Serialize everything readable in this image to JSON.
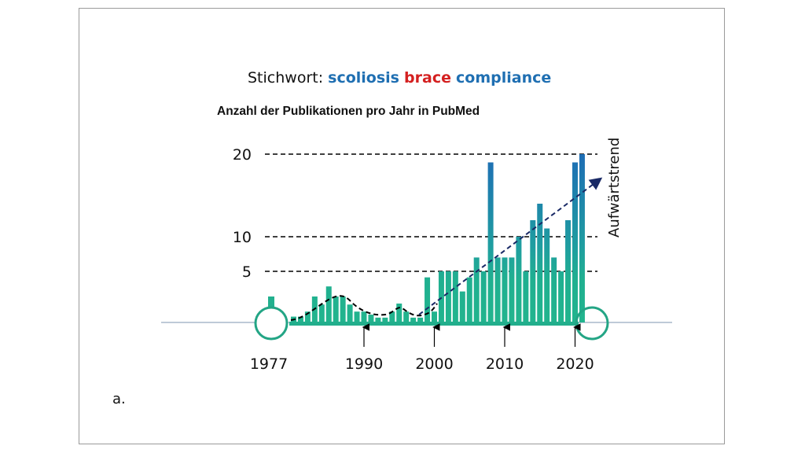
{
  "chart_data": {
    "type": "bar",
    "title_prefix": "Stichwort:",
    "keywords": [
      {
        "text": "scoliosis",
        "color": "#1f6fb2"
      },
      {
        "text": "brace",
        "color": "#d42020"
      },
      {
        "text": "compliance",
        "color": "#1f6fb2"
      }
    ],
    "subtitle": "Anzahl der Publikationen pro Jahr in PubMed",
    "ylabel": "",
    "xlabel": "",
    "y_ticks": [
      {
        "value": 5,
        "label": "5"
      },
      {
        "value": 10,
        "label": "10"
      },
      {
        "value": 20,
        "label": "20"
      }
    ],
    "ylim": [
      0,
      20
    ],
    "x_tick_labels": [
      {
        "year": 1977,
        "label": "1977"
      },
      {
        "year": 1990,
        "label": "1990"
      },
      {
        "year": 2000,
        "label": "2000"
      },
      {
        "year": 2010,
        "label": "2010"
      },
      {
        "year": 2020,
        "label": "2020"
      }
    ],
    "isolated_bar": {
      "year": 1977,
      "value": 2.5
    },
    "start_year": 1980,
    "values": [
      0.5,
      0.5,
      1,
      2.5,
      1.7,
      3.5,
      2.5,
      2.5,
      1.7,
      1,
      1,
      0.7,
      0.4,
      0.4,
      1,
      1.8,
      1,
      0.4,
      0.4,
      4.4,
      1,
      5,
      5,
      5,
      3,
      4.4,
      7,
      5,
      19,
      7,
      7,
      7,
      10,
      5,
      12,
      14,
      11,
      7,
      5,
      12,
      19,
      20
    ],
    "trend_annotation": "Aufwärtstrend",
    "colors": {
      "bar_low": "#20b090",
      "bar_high": "#1e6db5",
      "trend": "#1a2a66"
    }
  },
  "figure_label": "a."
}
